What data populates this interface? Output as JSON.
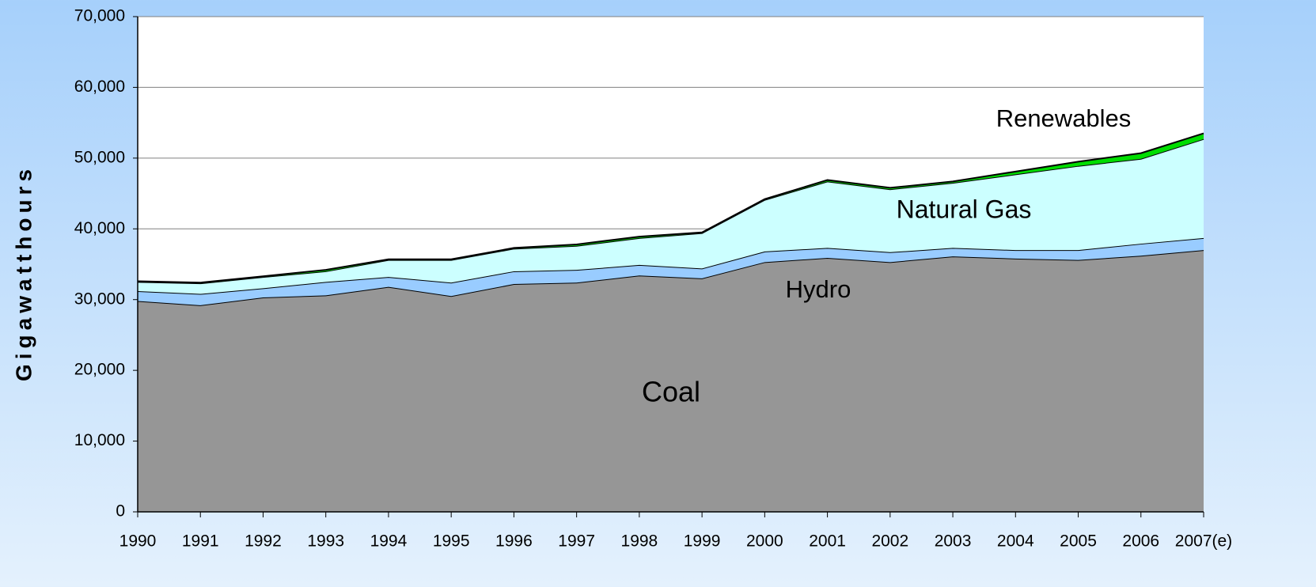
{
  "chart_data": {
    "type": "stacked_area",
    "y_label": "Gigawatthours",
    "categories": [
      "1990",
      "1991",
      "1992",
      "1993",
      "1994",
      "1995",
      "1996",
      "1997",
      "1998",
      "1999",
      "2000",
      "2001",
      "2002",
      "2003",
      "2004",
      "2005",
      "2006",
      "2007(e)"
    ],
    "series": [
      {
        "name": "Coal",
        "color": "#969696",
        "values": [
          29800,
          29200,
          30300,
          30600,
          31800,
          30500,
          32200,
          32400,
          33400,
          33000,
          35300,
          35900,
          35300,
          36100,
          35800,
          35600,
          36200,
          37000
        ]
      },
      {
        "name": "Hydro",
        "color": "#99ccff",
        "values": [
          1400,
          1600,
          1300,
          1900,
          1400,
          1900,
          1800,
          1800,
          1500,
          1400,
          1500,
          1400,
          1400,
          1200,
          1200,
          1400,
          1700,
          1700
        ]
      },
      {
        "name": "Natural Gas",
        "color": "#ccffff",
        "values": [
          1300,
          1500,
          1600,
          1500,
          2400,
          3200,
          3200,
          3400,
          3800,
          5000,
          7300,
          9400,
          8900,
          9200,
          10700,
          11900,
          12000,
          14000
        ]
      },
      {
        "name": "Renewables",
        "color": "#00dd00",
        "values": [
          100,
          100,
          100,
          200,
          100,
          100,
          100,
          200,
          200,
          100,
          100,
          200,
          200,
          200,
          400,
          600,
          800,
          800
        ]
      }
    ],
    "ylim": [
      0,
      70000
    ],
    "yticks": [
      0,
      {
        "value": 10000,
        "label": "10,000"
      },
      {
        "value": 20000,
        "label": "20,000"
      },
      {
        "value": 30000,
        "label": "30,000"
      },
      {
        "value": 40000,
        "label": "40,000"
      },
      {
        "value": 50000,
        "label": "50,000"
      },
      {
        "value": 60000,
        "label": "60,000"
      },
      {
        "value": 70000,
        "label": "70,000"
      }
    ],
    "grid": true
  }
}
